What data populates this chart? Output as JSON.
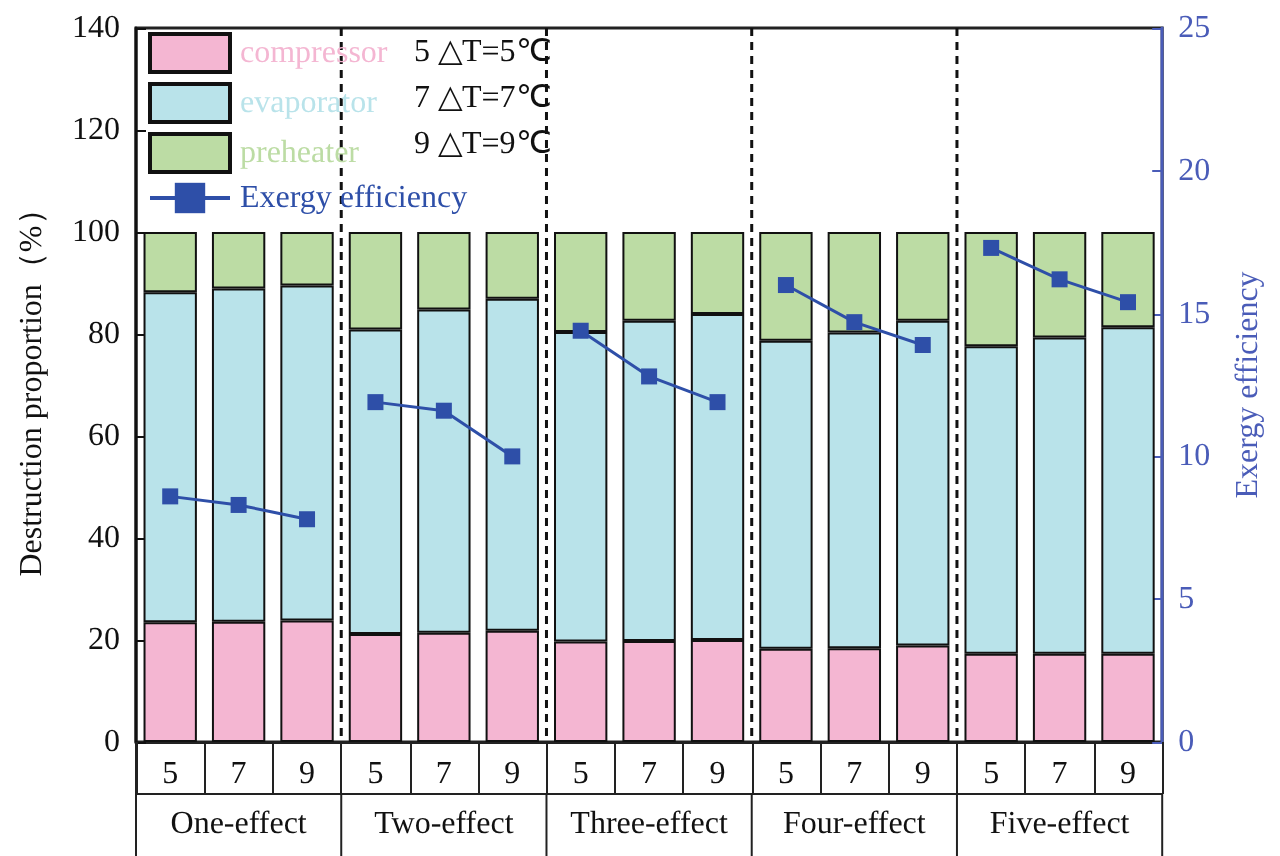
{
  "chart_data": {
    "type": "bar",
    "stacked": true,
    "ylabel": "Destruction proportion（%）",
    "y2label": "Exergy efficiency",
    "categories": [
      "5",
      "7",
      "9",
      "5",
      "7",
      "9",
      "5",
      "7",
      "9",
      "5",
      "7",
      "9",
      "5",
      "7",
      "9"
    ],
    "series": [
      {
        "name": "compressor",
        "color": "#f4b6d2",
        "values": [
          23.5,
          23.6,
          23.8,
          21.2,
          21.4,
          21.8,
          19.7,
          19.8,
          20.0,
          18.3,
          18.4,
          18.9,
          17.3,
          17.3,
          17.3
        ]
      },
      {
        "name": "evaporator",
        "color": "#b9e3ea",
        "values": [
          64.7,
          65.3,
          65.7,
          59.7,
          63.4,
          65.1,
          60.7,
          62.8,
          63.9,
          60.4,
          61.9,
          63.7,
          60.3,
          62.0,
          64.0
        ]
      },
      {
        "name": "preheater",
        "color": "#bcdca4",
        "values": [
          11.8,
          11.1,
          10.5,
          19.1,
          15.2,
          13.1,
          19.6,
          17.4,
          16.1,
          21.3,
          19.7,
          17.4,
          22.4,
          20.7,
          18.7
        ]
      },
      {
        "name": "Exergy efficiency",
        "type": "line",
        "axis": "y2",
        "color": "#2e4fa8",
        "marker": "square",
        "values": [
          8.6,
          8.3,
          7.8,
          11.9,
          11.6,
          10.0,
          14.4,
          12.8,
          11.9,
          16.0,
          14.7,
          13.9,
          17.3,
          16.2,
          15.4
        ]
      }
    ],
    "ylim": [
      0,
      140
    ],
    "yticks": [
      0,
      20,
      40,
      60,
      80,
      100,
      120,
      140
    ],
    "y2lim": [
      0,
      25
    ],
    "y2ticks": [
      0,
      5,
      10,
      15,
      20,
      25
    ],
    "annotations": [
      "5 △T=5℃",
      "7 △T=7℃",
      "9 △T=9℃",
      "One-effect",
      "Two-effect",
      "Three-effect",
      "Four-effect",
      "Five-effect"
    ],
    "legend": "top left",
    "grid": false
  }
}
